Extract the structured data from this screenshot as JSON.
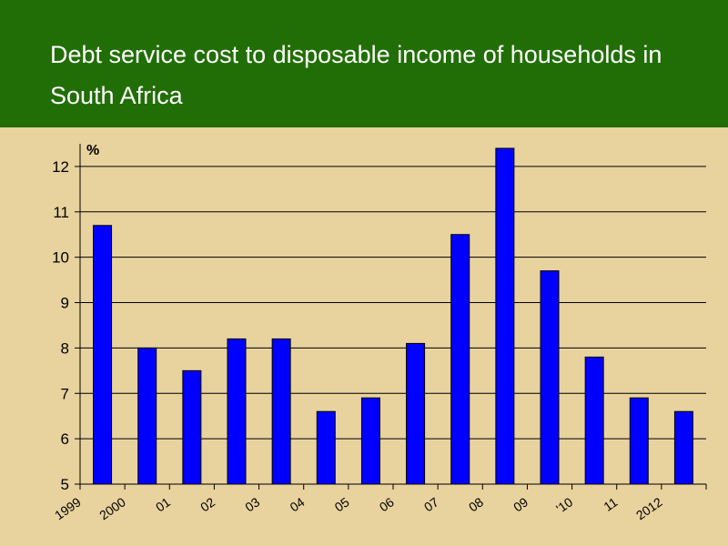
{
  "title": "Debt service cost to disposable income of households in South Africa",
  "colors": {
    "header": "#226e06",
    "background": "#e8d29e",
    "bar": "#0000ff"
  },
  "chart_data": {
    "type": "bar",
    "title": "Debt service cost to disposable income of households in South Africa",
    "ylabel": "%",
    "xlabel": "",
    "categories": [
      "1999",
      "2000",
      "01",
      "02",
      "03",
      "04",
      "05",
      "06",
      "07",
      "08",
      "09",
      "'10",
      "11",
      "2012"
    ],
    "values": [
      10.7,
      8.0,
      7.5,
      8.2,
      8.2,
      6.6,
      6.9,
      8.1,
      10.5,
      12.4,
      9.7,
      7.8,
      6.9,
      6.6
    ],
    "ylim": [
      5,
      12.5
    ],
    "yticks": [
      5,
      6,
      7,
      8,
      9,
      10,
      11,
      12
    ],
    "grid": true,
    "legend": "none"
  }
}
